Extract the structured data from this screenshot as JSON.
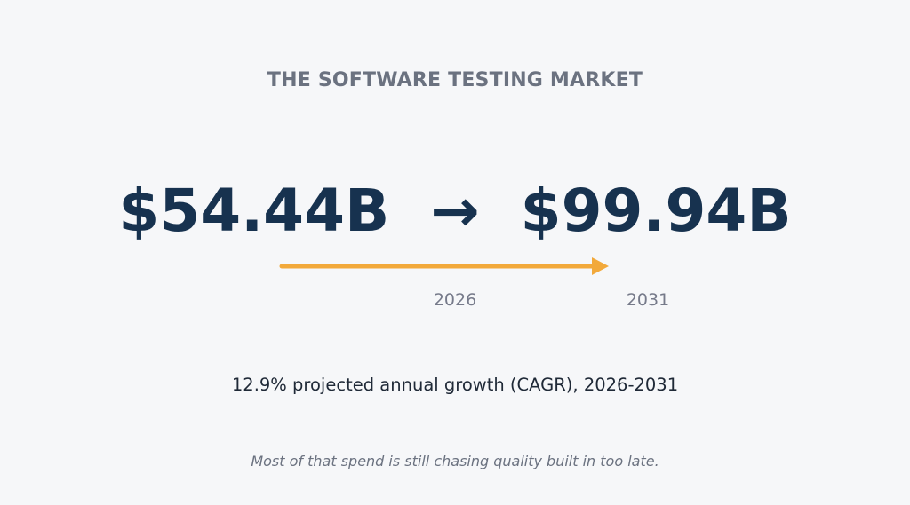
{
  "header": {
    "title": "THE SOFTWARE TESTING MARKET"
  },
  "market": {
    "start_value": "$54.44B",
    "arrow": "→",
    "end_value": "$99.94B",
    "start_year": "2026",
    "end_year": "2031",
    "cagr_percent": 12.9
  },
  "growth_line": "12.9% projected annual growth (CAGR), 2026-2031",
  "footnote": "Most of that spend is still chasing quality built in too late.",
  "colors": {
    "background": "#f6f7f9",
    "title": "#6b7280",
    "value": "#17324f",
    "accent": "#f2a93b",
    "year": "#767a8a",
    "body_text": "#1f2937",
    "footnote": "#6b7280"
  },
  "icons": {
    "timeline_arrow": "arrow-right-icon"
  }
}
